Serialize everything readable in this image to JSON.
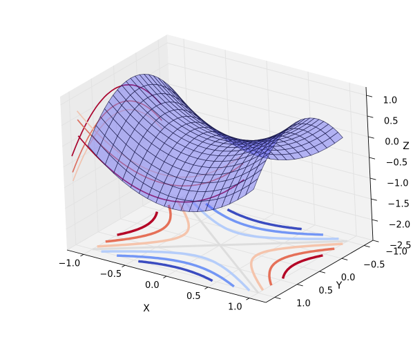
{
  "chart_data": {
    "type": "surface3d",
    "surface_function": "x^2 - y^2",
    "surface_color": "#5b5bf5",
    "surface_grid": {
      "x_min": -1.0,
      "x_max": 1.0,
      "y_min": -1.0,
      "y_max": 1.0,
      "steps": 20
    },
    "contour_levels": [
      -0.8,
      -0.5,
      -0.2,
      0.2,
      0.5,
      0.8
    ],
    "contour_colors": {
      "-0.8": "#3b4cc0",
      "-0.5": "#7396f5",
      "-0.2": "#b5cdfa",
      "0.2": "#f5c4ac",
      "0.5": "#e57058",
      "0.8": "#b40426"
    },
    "projection_offsets": {
      "z": -2.5,
      "x_wall": -1.2,
      "y_wall": 1.2
    },
    "axes": {
      "x": {
        "label": "X",
        "range": [
          -1.2,
          1.2
        ],
        "ticks": [
          -1.0,
          -0.5,
          0.0,
          0.5,
          1.0
        ],
        "tick_labels": [
          "−1.0",
          "−0.5",
          "0.0",
          "0.5",
          "1.0"
        ]
      },
      "y": {
        "label": "Y",
        "range": [
          -1.2,
          1.2
        ],
        "ticks": [
          -1.0,
          -0.5,
          0.0,
          0.5,
          1.0
        ],
        "tick_labels": [
          "−1.0",
          "−0.5",
          "0.0",
          "0.5",
          "1.0"
        ]
      },
      "z": {
        "label": "Z",
        "range": [
          -2.5,
          1.2
        ],
        "ticks": [
          -2.5,
          -2.0,
          -1.5,
          -1.0,
          -0.5,
          0.0,
          0.5,
          1.0
        ],
        "tick_labels": [
          "−2.5",
          "−2.0",
          "−1.5",
          "−1.0",
          "−0.5",
          "0.0",
          "0.5",
          "1.0"
        ]
      }
    },
    "grid": true
  }
}
